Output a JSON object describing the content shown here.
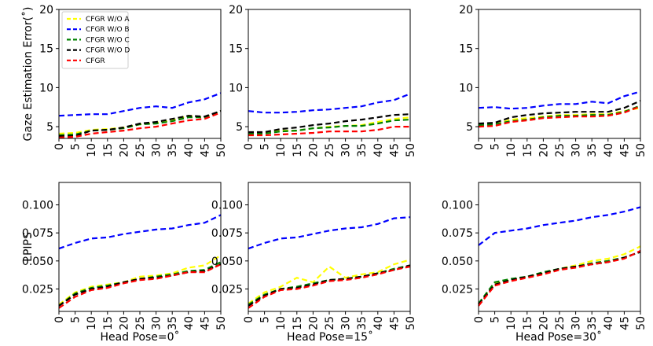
{
  "legend": {
    "items": [
      {
        "label": "CFGR W/O A",
        "color": "#ffff00"
      },
      {
        "label": "CFGR W/O B",
        "color": "#0000ff"
      },
      {
        "label": "CFGR W/O C",
        "color": "#008000"
      },
      {
        "label": "CFGR W/O D",
        "color": "#000000"
      },
      {
        "label": "CFGR",
        "color": "#ff0000"
      }
    ]
  },
  "row_labels": {
    "top": "Gaze Estimation Error(˚)",
    "bottom": "LPIPS"
  },
  "column_labels": [
    "Head Pose=0˚",
    "Head Pose=15˚",
    "Head Pose=30˚"
  ],
  "x_ticks": [
    "0",
    "5",
    "10",
    "15",
    "20",
    "25",
    "30",
    "35",
    "40",
    "45",
    "50"
  ],
  "y_ticks": {
    "top": [
      "5",
      "10",
      "15",
      "20"
    ],
    "bottom": [
      "0.025",
      "0.050",
      "0.075",
      "0.100"
    ]
  },
  "chart_data": [
    {
      "type": "line",
      "row": "top",
      "title": "",
      "xlabel": "",
      "ylabel": "Gaze Estimation Error(˚)",
      "x": [
        0,
        5,
        10,
        15,
        20,
        25,
        30,
        35,
        40,
        45,
        50
      ],
      "ylim": [
        3.5,
        20
      ],
      "series": [
        {
          "name": "CFGR W/O A",
          "values": [
            4.1,
            4.2,
            4.6,
            4.7,
            4.9,
            5.3,
            5.5,
            5.8,
            6.4,
            6.2,
            7.0
          ]
        },
        {
          "name": "CFGR W/O B",
          "values": [
            6.4,
            6.5,
            6.6,
            6.6,
            7.0,
            7.4,
            7.6,
            7.4,
            8.1,
            8.5,
            9.3
          ]
        },
        {
          "name": "CFGR W/O C",
          "values": [
            3.9,
            4.0,
            4.5,
            4.6,
            4.8,
            5.3,
            5.4,
            5.7,
            6.2,
            6.2,
            7.0
          ]
        },
        {
          "name": "CFGR W/O D",
          "values": [
            3.8,
            3.8,
            4.5,
            4.6,
            4.9,
            5.4,
            5.6,
            6.0,
            6.4,
            6.3,
            7.0
          ]
        },
        {
          "name": "CFGR",
          "values": [
            3.6,
            3.7,
            4.1,
            4.3,
            4.5,
            4.8,
            5.0,
            5.4,
            5.8,
            6.0,
            6.8
          ]
        }
      ]
    },
    {
      "type": "line",
      "row": "top",
      "title": "",
      "xlabel": "",
      "ylabel": "",
      "x": [
        0,
        5,
        10,
        15,
        20,
        25,
        30,
        35,
        40,
        45,
        50
      ],
      "ylim": [
        3.5,
        20
      ],
      "series": [
        {
          "name": "CFGR W/O A",
          "values": [
            4.2,
            4.2,
            4.5,
            4.5,
            4.8,
            5.0,
            5.1,
            5.2,
            5.6,
            6.0,
            6.2
          ]
        },
        {
          "name": "CFGR W/O B",
          "values": [
            7.0,
            6.8,
            6.8,
            6.9,
            7.1,
            7.2,
            7.4,
            7.6,
            8.1,
            8.4,
            9.2
          ]
        },
        {
          "name": "CFGR W/O C",
          "values": [
            4.1,
            4.1,
            4.4,
            4.5,
            4.8,
            4.9,
            5.1,
            5.1,
            5.4,
            5.8,
            5.9
          ]
        },
        {
          "name": "CFGR W/O D",
          "values": [
            4.3,
            4.3,
            4.7,
            4.9,
            5.2,
            5.4,
            5.7,
            5.9,
            6.2,
            6.5,
            6.6
          ]
        },
        {
          "name": "CFGR",
          "values": [
            3.9,
            3.9,
            4.0,
            4.1,
            4.2,
            4.4,
            4.4,
            4.4,
            4.6,
            5.0,
            5.0
          ]
        }
      ]
    },
    {
      "type": "line",
      "row": "top",
      "title": "",
      "xlabel": "",
      "ylabel": "",
      "x": [
        0,
        5,
        10,
        15,
        20,
        25,
        30,
        35,
        40,
        45,
        50
      ],
      "ylim": [
        3.5,
        20
      ],
      "series": [
        {
          "name": "CFGR W/O A",
          "values": [
            5.2,
            5.3,
            5.9,
            6.1,
            6.3,
            6.5,
            6.5,
            6.6,
            6.6,
            7.0,
            7.4
          ]
        },
        {
          "name": "CFGR W/O B",
          "values": [
            7.4,
            7.5,
            7.3,
            7.4,
            7.7,
            7.9,
            7.9,
            8.2,
            8.0,
            8.9,
            9.5
          ]
        },
        {
          "name": "CFGR W/O C",
          "values": [
            5.2,
            5.3,
            5.7,
            5.9,
            6.2,
            6.4,
            6.4,
            6.5,
            6.5,
            6.9,
            7.7
          ]
        },
        {
          "name": "CFGR W/O D",
          "values": [
            5.4,
            5.5,
            6.2,
            6.5,
            6.7,
            6.8,
            6.9,
            6.9,
            6.9,
            7.4,
            8.3
          ]
        },
        {
          "name": "CFGR",
          "values": [
            5.0,
            5.1,
            5.6,
            5.8,
            6.1,
            6.2,
            6.3,
            6.3,
            6.4,
            6.8,
            7.6
          ]
        }
      ]
    },
    {
      "type": "line",
      "row": "bottom",
      "title": "",
      "xlabel": "Head Pose=0˚",
      "ylabel": "LPIPS",
      "x": [
        0,
        5,
        10,
        15,
        20,
        25,
        30,
        35,
        40,
        45,
        50
      ],
      "ylim": [
        0.005,
        0.12
      ],
      "series": [
        {
          "name": "CFGR W/O A",
          "values": [
            0.011,
            0.022,
            0.027,
            0.029,
            0.031,
            0.036,
            0.037,
            0.039,
            0.044,
            0.046,
            0.055
          ]
        },
        {
          "name": "CFGR W/O B",
          "values": [
            0.061,
            0.066,
            0.07,
            0.071,
            0.074,
            0.076,
            0.078,
            0.079,
            0.082,
            0.084,
            0.091
          ]
        },
        {
          "name": "CFGR W/O C",
          "values": [
            0.01,
            0.021,
            0.026,
            0.028,
            0.031,
            0.034,
            0.036,
            0.038,
            0.041,
            0.042,
            0.049
          ]
        },
        {
          "name": "CFGR W/O D",
          "values": [
            0.01,
            0.02,
            0.025,
            0.027,
            0.031,
            0.034,
            0.035,
            0.037,
            0.04,
            0.041,
            0.047
          ]
        },
        {
          "name": "CFGR",
          "values": [
            0.008,
            0.018,
            0.024,
            0.026,
            0.03,
            0.033,
            0.034,
            0.037,
            0.04,
            0.04,
            0.047
          ]
        }
      ]
    },
    {
      "type": "line",
      "row": "bottom",
      "title": "",
      "xlabel": "Head Pose=15˚",
      "ylabel": "",
      "x": [
        0,
        5,
        10,
        15,
        20,
        25,
        30,
        35,
        40,
        45,
        50
      ],
      "ylim": [
        0.005,
        0.12
      ],
      "series": [
        {
          "name": "CFGR W/O A",
          "values": [
            0.012,
            0.022,
            0.027,
            0.035,
            0.031,
            0.045,
            0.035,
            0.038,
            0.04,
            0.047,
            0.051
          ]
        },
        {
          "name": "CFGR W/O B",
          "values": [
            0.061,
            0.066,
            0.07,
            0.071,
            0.074,
            0.077,
            0.079,
            0.08,
            0.083,
            0.088,
            0.089
          ]
        },
        {
          "name": "CFGR W/O C",
          "values": [
            0.011,
            0.02,
            0.025,
            0.027,
            0.03,
            0.033,
            0.034,
            0.036,
            0.039,
            0.043,
            0.046
          ]
        },
        {
          "name": "CFGR W/O D",
          "values": [
            0.01,
            0.019,
            0.025,
            0.026,
            0.029,
            0.033,
            0.034,
            0.036,
            0.039,
            0.042,
            0.046
          ]
        },
        {
          "name": "CFGR",
          "values": [
            0.008,
            0.018,
            0.024,
            0.025,
            0.028,
            0.032,
            0.033,
            0.035,
            0.038,
            0.042,
            0.045
          ]
        }
      ]
    },
    {
      "type": "line",
      "row": "bottom",
      "title": "",
      "xlabel": "Head Pose=30˚",
      "ylabel": "",
      "x": [
        0,
        5,
        10,
        15,
        20,
        25,
        30,
        35,
        40,
        45,
        50
      ],
      "ylim": [
        0.005,
        0.12
      ],
      "series": [
        {
          "name": "CFGR W/O A",
          "values": [
            0.012,
            0.03,
            0.033,
            0.036,
            0.039,
            0.043,
            0.046,
            0.05,
            0.052,
            0.056,
            0.063
          ]
        },
        {
          "name": "CFGR W/O B",
          "values": [
            0.064,
            0.075,
            0.077,
            0.079,
            0.082,
            0.084,
            0.086,
            0.089,
            0.091,
            0.094,
            0.098
          ]
        },
        {
          "name": "CFGR W/O C",
          "values": [
            0.012,
            0.031,
            0.034,
            0.036,
            0.04,
            0.043,
            0.045,
            0.048,
            0.05,
            0.053,
            0.058
          ]
        },
        {
          "name": "CFGR W/O D",
          "values": [
            0.011,
            0.029,
            0.033,
            0.036,
            0.039,
            0.043,
            0.045,
            0.047,
            0.049,
            0.053,
            0.058
          ]
        },
        {
          "name": "CFGR",
          "values": [
            0.01,
            0.028,
            0.032,
            0.035,
            0.038,
            0.042,
            0.044,
            0.047,
            0.049,
            0.052,
            0.059
          ]
        }
      ]
    }
  ]
}
